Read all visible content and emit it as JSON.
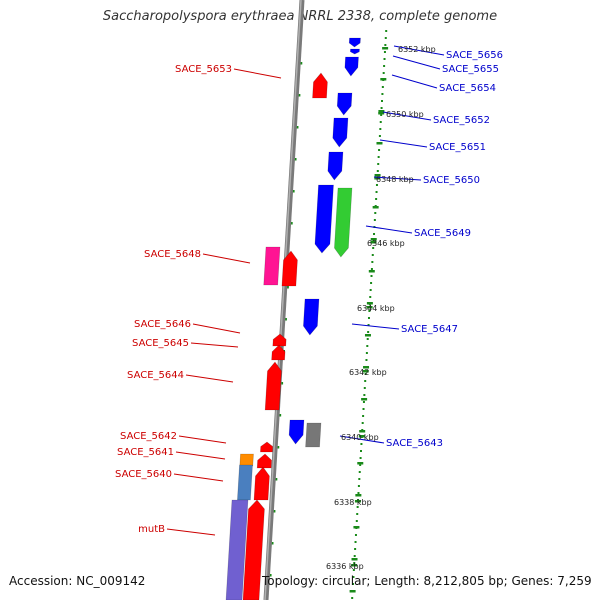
{
  "title": "Saccharopolyspora erythraea NRRL 2338, complete genome",
  "footer": {
    "accession": "Accession: NC_009142",
    "topology": "Topology: circular; Length: 8,212,805 bp; Genes: 7,259"
  },
  "colors": {
    "backbone": "#808080",
    "ruler": "#1a8a1a",
    "forward_label": "#cc0000",
    "reverse_label": "#0000cc",
    "gene_red": "#ff0000",
    "gene_blue": "#0000ff",
    "gene_green": "#33cc33",
    "gene_magenta": "#ff1493",
    "gene_gray": "#777777",
    "gene_orange": "#ff8c00",
    "gene_steel": "#4a7fbf",
    "gene_purple": "#7060d0"
  },
  "scale_labels": [
    "6352 kbp",
    "6350 kbp",
    "6348 kbp",
    "6346 kbp",
    "6344 kbp",
    "6342 kbp",
    "6340 kbp",
    "6338 kbp",
    "6336 kbp"
  ],
  "left_labels": [
    "SACE_5653",
    "SACE_5648",
    "SACE_5646",
    "SACE_5645",
    "SACE_5644",
    "SACE_5642",
    "SACE_5641",
    "SACE_5640",
    "mutB"
  ],
  "right_labels": [
    "SACE_5656",
    "SACE_5655",
    "SACE_5654",
    "SACE_5652",
    "SACE_5651",
    "SACE_5650",
    "SACE_5649",
    "SACE_5647",
    "SACE_5643"
  ]
}
